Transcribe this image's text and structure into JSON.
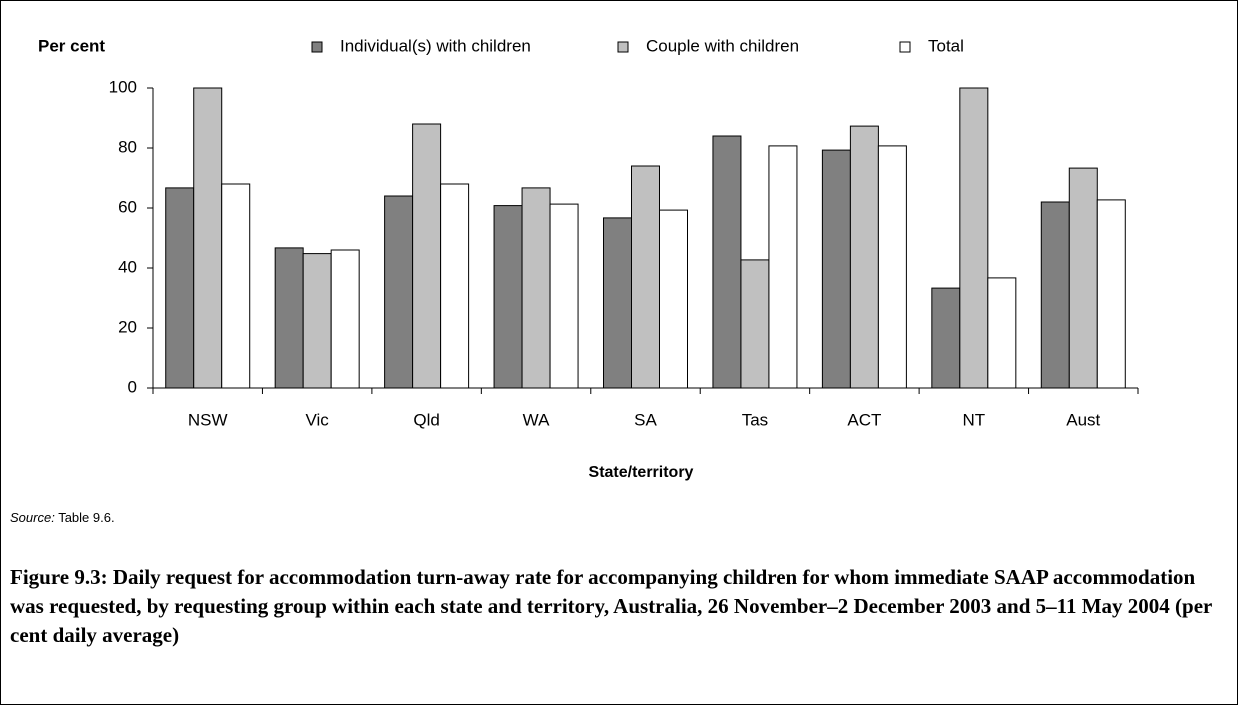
{
  "chart_data": {
    "type": "bar",
    "y_label": "Per cent",
    "x_label": "State/territory",
    "categories": [
      "NSW",
      "Vic",
      "Qld",
      "WA",
      "SA",
      "Tas",
      "ACT",
      "NT",
      "Aust"
    ],
    "series": [
      {
        "name": "Individual(s) with children",
        "color": "#808080",
        "values": [
          66.7,
          46.7,
          64,
          60.8,
          56.7,
          84,
          79.3,
          33.3,
          62
        ]
      },
      {
        "name": "Couple with children",
        "color": "#c0c0c0",
        "values": [
          100,
          44.8,
          88,
          66.7,
          74,
          42.7,
          87.3,
          100,
          73.3
        ]
      },
      {
        "name": "Total",
        "color": "#ffffff",
        "values": [
          68,
          46,
          68,
          61.3,
          59.3,
          80.7,
          80.7,
          36.7,
          62.7
        ]
      }
    ],
    "ylim": [
      0,
      100
    ],
    "yticks": [
      0,
      20,
      40,
      60,
      80,
      100
    ],
    "grid": false,
    "legend": "top"
  },
  "source_label": "Source:",
  "source": "Table 9.6.",
  "caption": "Figure 9.3: Daily request for accommodation turn-away rate for accompanying children for whom immediate SAAP accommodation was requested, by requesting group within each state and territory, Australia, 26 November–2 December 2003 and 5–11 May 2004 (per cent daily average)"
}
